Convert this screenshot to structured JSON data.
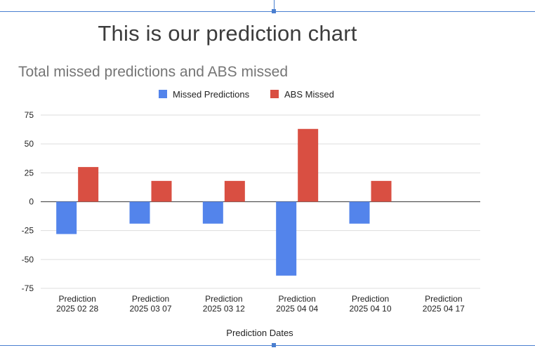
{
  "page": {
    "heading": "This is our prediction chart"
  },
  "chart_data": {
    "type": "bar",
    "title": "Total missed predictions and ABS missed",
    "xlabel": "Prediction Dates",
    "ylabel": "",
    "ylim": [
      -75,
      75
    ],
    "yticks": [
      75,
      50,
      25,
      0,
      -25,
      -50,
      -75
    ],
    "grid": true,
    "legend_position": "top",
    "categories": [
      [
        "Prediction",
        "2025 02 28"
      ],
      [
        "Prediction",
        "2025 03 07"
      ],
      [
        "Prediction",
        "2025 03 12"
      ],
      [
        "Prediction",
        "2025 04 04"
      ],
      [
        "Prediction",
        "2025 04 10"
      ],
      [
        "Prediction",
        "2025 04 17"
      ]
    ],
    "series": [
      {
        "name": "Missed Predictions",
        "color": "#5384eb",
        "values": [
          -28,
          -19,
          -19,
          -64,
          -19,
          0
        ]
      },
      {
        "name": "ABS Missed",
        "color": "#d94f42",
        "values": [
          30,
          18,
          18,
          63,
          18,
          0
        ]
      }
    ]
  }
}
